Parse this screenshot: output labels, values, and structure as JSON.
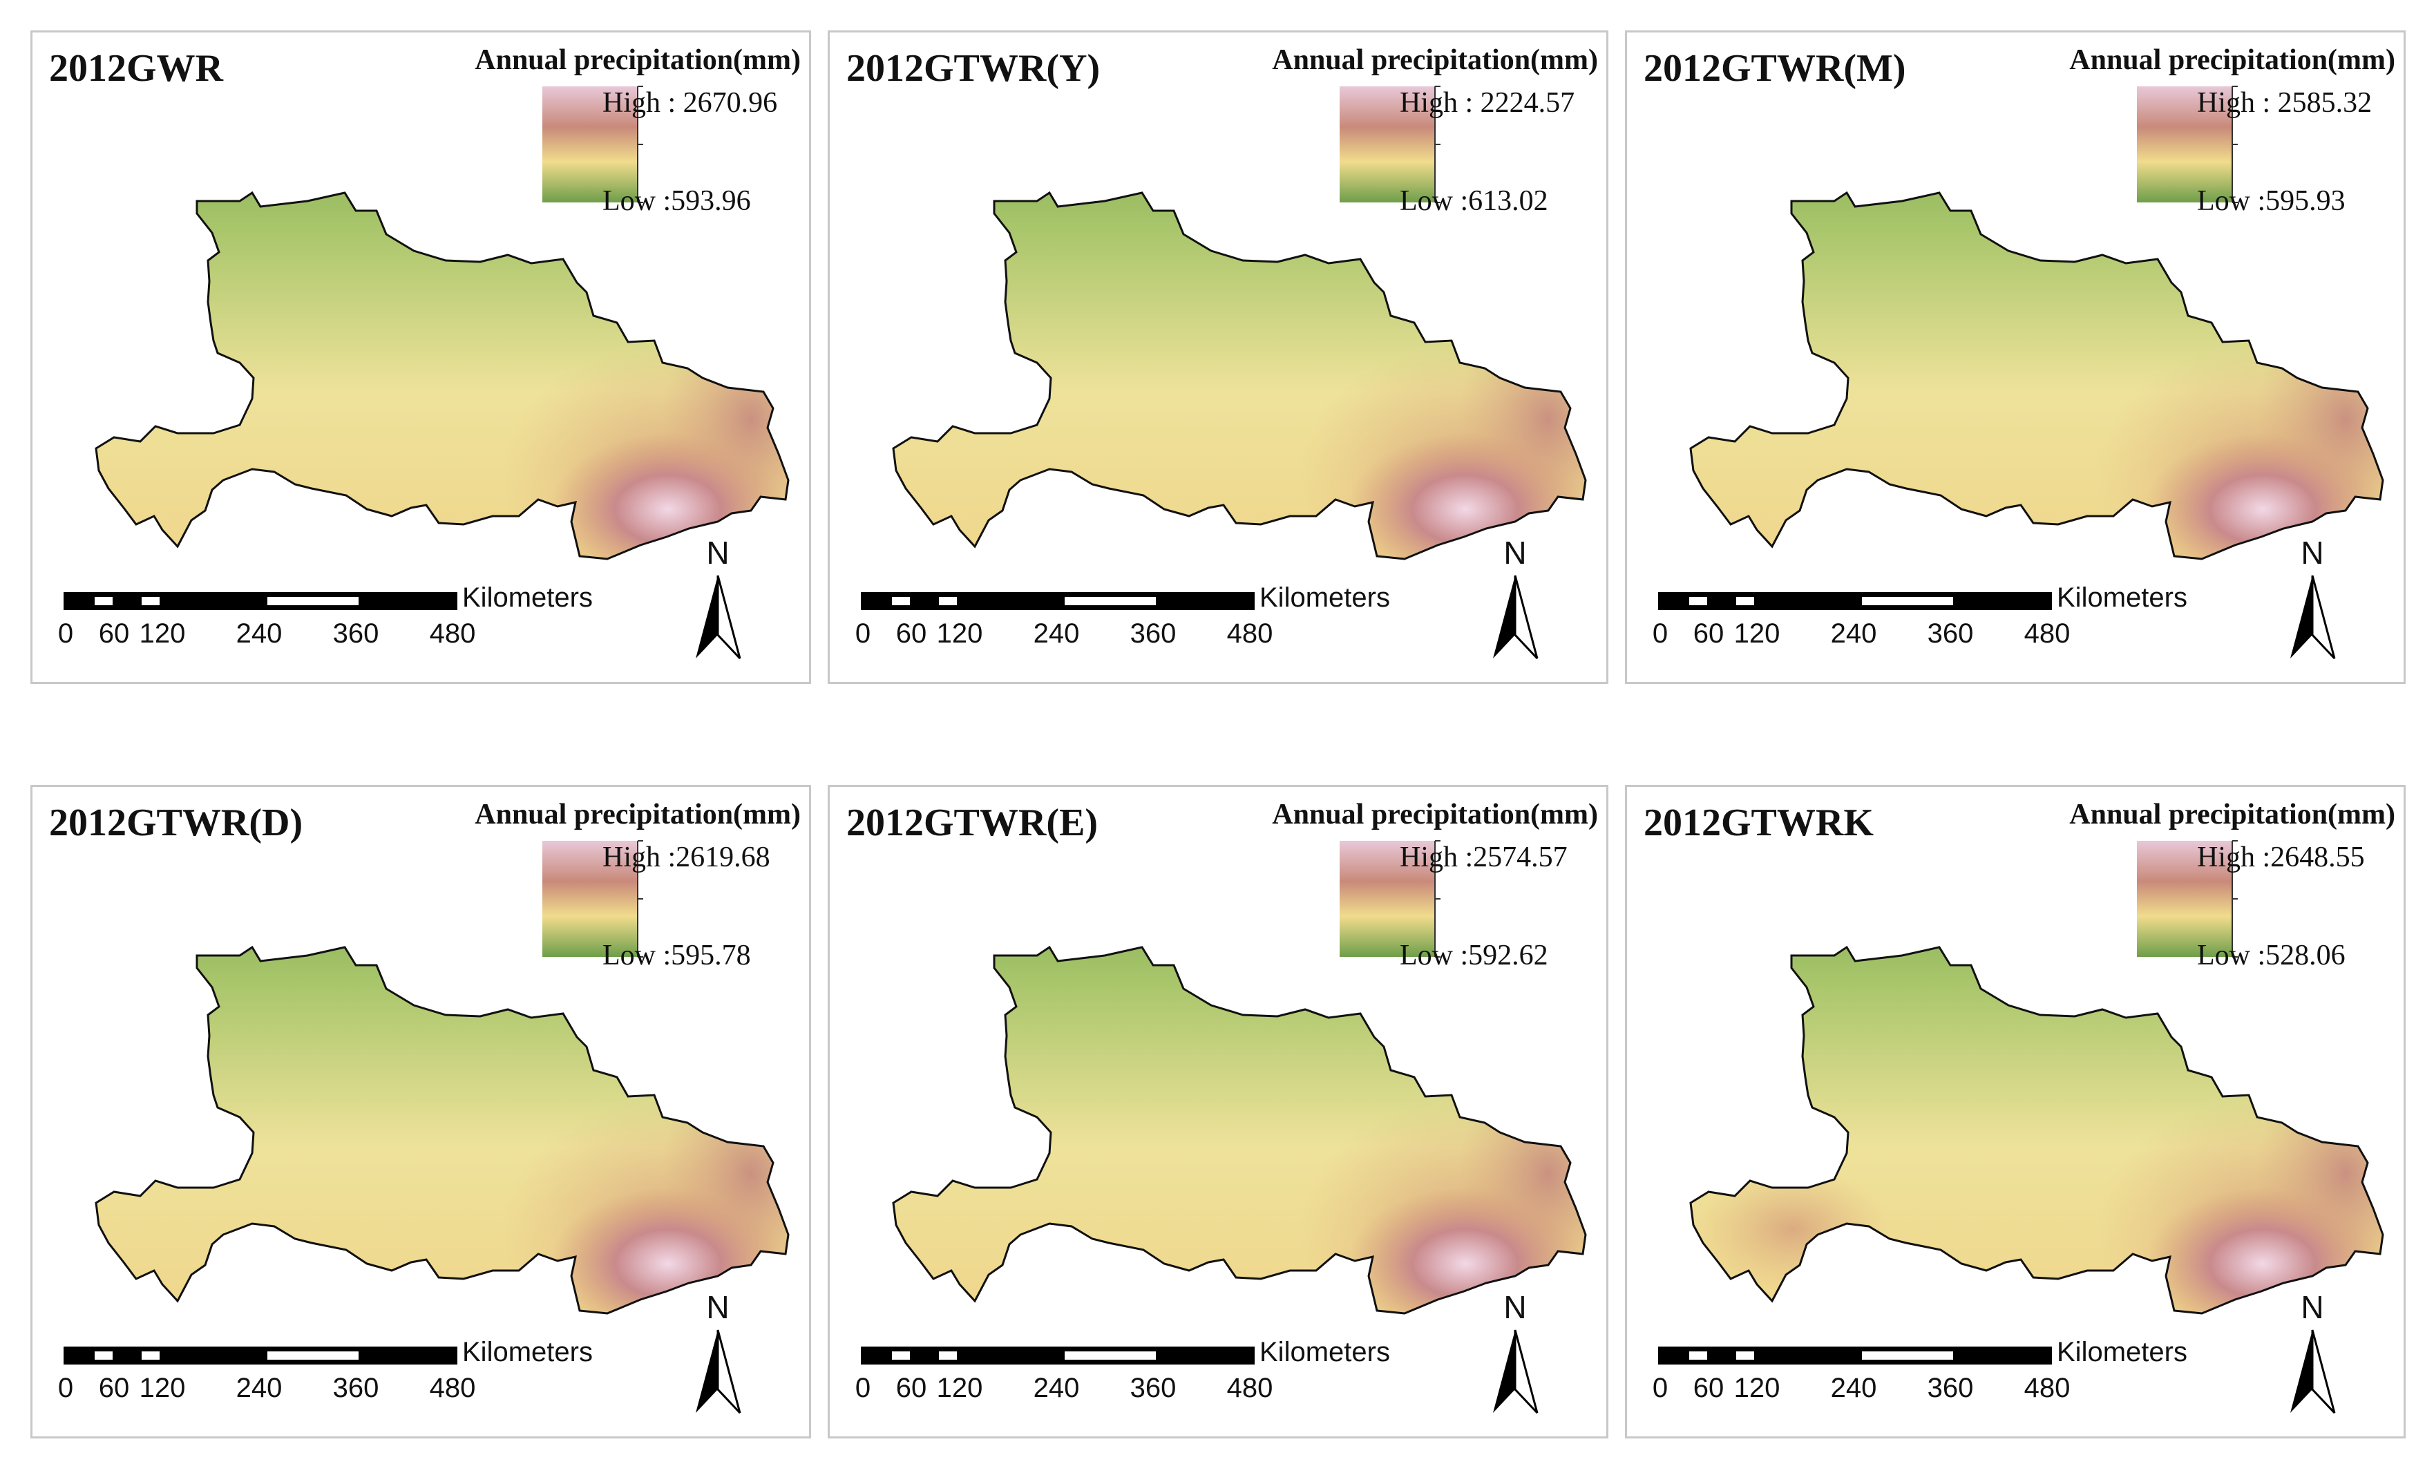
{
  "legend_title": "Annual precipitation(mm)",
  "scale_bar": {
    "unit_label": "Kilometers",
    "tick_labels": [
      "0",
      "60",
      "120",
      "240",
      "360",
      "480"
    ]
  },
  "north_arrow_label": "N",
  "colors": {
    "ramp_high": "#e8c8d8",
    "ramp_upper": "#c98a7a",
    "ramp_mid": "#f0dc8c",
    "ramp_low": "#6e9e4a",
    "province_outline": "#111111",
    "panel_border": "#c8c8c8"
  },
  "maps": [
    {
      "title": "2012GWR",
      "high_label": "High : 2670.96",
      "low_label": "Low :593.96"
    },
    {
      "title": "2012GTWR(Y)",
      "high_label": "High : 2224.57",
      "low_label": "Low :613.02"
    },
    {
      "title": "2012GTWR(M)",
      "high_label": "High : 2585.32",
      "low_label": "Low :595.93"
    },
    {
      "title": "2012GTWR(D)",
      "high_label": "High :2619.68",
      "low_label": "Low :595.78"
    },
    {
      "title": "2012GTWR(E)",
      "high_label": "High :2574.57",
      "low_label": "Low :592.62"
    },
    {
      "title": "2012GTWRK",
      "high_label": "High :2648.55",
      "low_label": "Low :528.06"
    }
  ]
}
